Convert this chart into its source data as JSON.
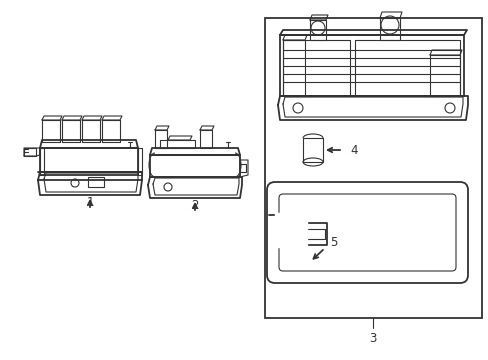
{
  "background_color": "#ffffff",
  "line_color": "#333333",
  "lw_thick": 1.3,
  "lw_thin": 0.8,
  "fig_width": 4.89,
  "fig_height": 3.6,
  "dpi": 100,
  "label_fontsize": 8.5,
  "labels": [
    "1",
    "2",
    "3",
    "4",
    "5"
  ]
}
